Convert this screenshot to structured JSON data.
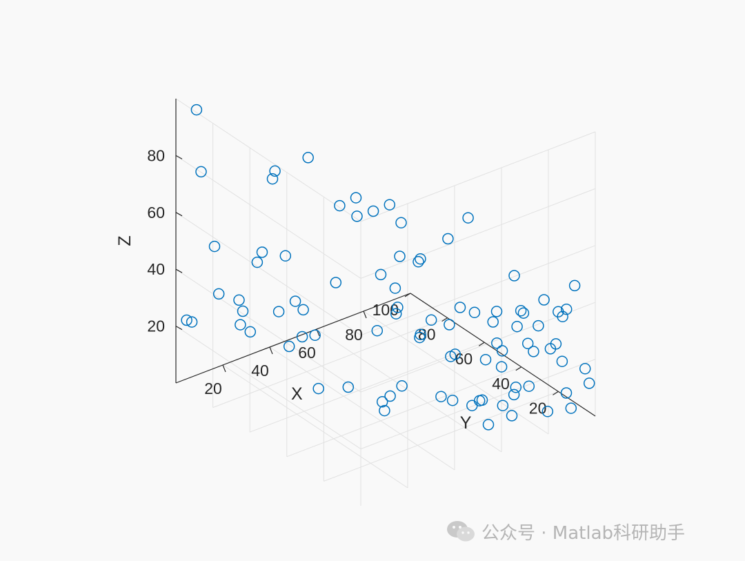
{
  "chart_data": {
    "type": "scatter3",
    "title": "",
    "xlabel": "X",
    "ylabel": "Y",
    "zlabel": "Z",
    "x_ticks": [
      20,
      40,
      60,
      80
    ],
    "y_ticks": [
      20,
      40,
      60,
      80,
      100
    ],
    "z_ticks": [
      20,
      40,
      60,
      80
    ],
    "xlim": [
      0,
      100
    ],
    "ylim": [
      0,
      100
    ],
    "zlim": [
      0,
      100
    ],
    "grid": true,
    "view": "az -37.5, el 30",
    "marker": "o",
    "marker_color": "#0072bd",
    "points": [
      [
        8,
        99,
        94
      ],
      [
        6,
        94,
        75
      ],
      [
        7,
        88,
        51
      ],
      [
        3,
        98,
        22
      ],
      [
        12,
        92,
        31
      ],
      [
        23,
        93,
        21
      ],
      [
        18,
        88,
        20
      ],
      [
        26,
        89,
        39
      ],
      [
        12,
        63,
        84
      ],
      [
        17,
        68,
        83
      ],
      [
        28,
        64,
        86
      ],
      [
        32,
        52,
        73
      ],
      [
        35,
        47,
        77
      ],
      [
        37,
        49,
        69
      ],
      [
        21,
        80,
        48
      ],
      [
        27,
        75,
        47
      ],
      [
        40,
        44,
        72
      ],
      [
        45,
        36,
        58
      ],
      [
        49,
        31,
        57
      ],
      [
        44,
        34,
        71
      ],
      [
        53,
        35,
        55
      ],
      [
        44,
        45,
        48
      ],
      [
        47,
        41,
        44
      ],
      [
        39,
        63,
        39
      ],
      [
        21,
        71,
        31
      ],
      [
        33,
        73,
        27
      ],
      [
        12,
        75,
        25
      ],
      [
        27,
        59,
        26
      ],
      [
        48,
        52,
        24
      ],
      [
        31,
        71,
        19
      ],
      [
        60,
        57,
        24
      ],
      [
        63,
        60,
        24
      ],
      [
        56,
        13,
        78
      ],
      [
        27,
        73,
        16
      ],
      [
        38,
        55,
        6
      ],
      [
        44,
        43,
        1
      ],
      [
        34,
        66,
        2
      ],
      [
        56,
        20,
        27
      ],
      [
        69,
        11,
        28
      ],
      [
        69,
        20,
        21
      ],
      [
        62,
        30,
        20
      ],
      [
        57,
        40,
        25
      ],
      [
        59,
        43,
        22
      ],
      [
        63,
        32,
        30
      ],
      [
        60,
        38,
        30
      ],
      [
        66,
        30,
        36
      ],
      [
        69,
        26,
        35
      ],
      [
        73,
        19,
        26
      ],
      [
        82,
        16,
        35
      ],
      [
        82,
        21,
        46
      ],
      [
        86,
        10,
        41
      ],
      [
        80,
        28,
        31
      ],
      [
        94,
        8,
        36
      ],
      [
        56,
        2,
        10
      ],
      [
        66,
        2,
        10
      ],
      [
        62,
        13,
        12
      ],
      [
        50,
        20,
        14
      ],
      [
        64,
        21,
        6
      ],
      [
        53,
        45,
        6
      ],
      [
        48,
        45,
        4
      ],
      [
        73,
        6,
        43
      ],
      [
        69,
        3,
        40
      ],
      [
        76,
        3,
        29
      ],
      [
        84,
        4,
        27
      ],
      [
        89,
        4,
        21
      ],
      [
        90,
        3,
        10
      ],
      [
        98,
        3,
        16
      ],
      [
        85,
        1,
        41
      ],
      [
        90,
        5,
        36
      ],
      [
        99,
        2,
        11
      ],
      [
        78,
        8,
        14
      ],
      [
        82,
        3,
        6
      ],
      [
        92,
        3,
        4
      ],
      [
        75,
        19,
        17
      ],
      [
        68,
        22,
        6
      ],
      [
        74,
        10,
        14
      ],
      [
        74,
        11,
        11
      ],
      [
        70,
        12,
        8
      ],
      [
        62,
        29,
        5
      ],
      [
        82,
        8,
        34
      ],
      [
        87,
        20,
        21
      ],
      [
        92,
        1,
        48
      ],
      [
        47,
        48,
        1
      ],
      [
        8,
        76,
        37
      ],
      [
        32,
        25,
        85
      ],
      [
        49,
        15,
        72
      ],
      [
        32,
        76,
        29
      ],
      [
        6,
        99,
        20
      ],
      [
        69,
        16,
        36
      ],
      [
        84,
        1,
        30
      ]
    ]
  },
  "watermark": {
    "icon": "wechat-icon",
    "text": "公众号 · Matlab科研助手"
  },
  "colors": {
    "marker": "#0072bd",
    "axis": "#262626",
    "grid": "#e1e1e1",
    "background": "#f9f9f9"
  }
}
